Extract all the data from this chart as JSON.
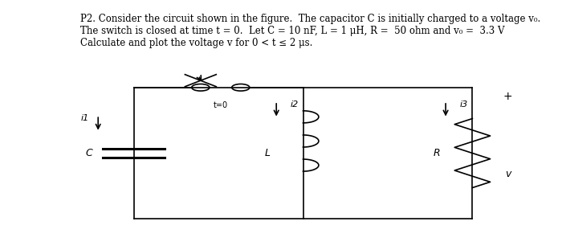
{
  "title_line1": "P2. Consider the circuit shown in the figure.  The capacitor C is initially charged to a voltage v₀.",
  "title_line2": "The switch is closed at time t = 0.  Let C = 10 nF, L = 1 μH, R =  50 ohm and v₀ =  3.3 V",
  "title_line3": "Calculate and plot the voltage v for 0 < t ≤ 2 μs.",
  "bg_color": "#ffffff",
  "circuit_bg": "#ddd8cc",
  "text_color": "#000000",
  "font_size": 8.5
}
